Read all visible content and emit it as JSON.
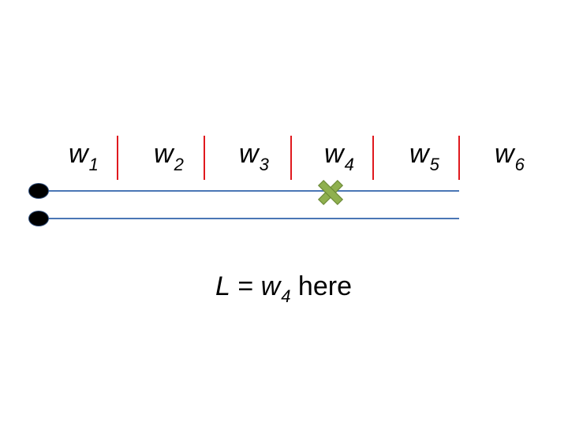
{
  "segments": [
    {
      "name": "w",
      "sub": "1"
    },
    {
      "name": "w",
      "sub": "2"
    },
    {
      "name": "w",
      "sub": "3"
    },
    {
      "name": "w",
      "sub": "4"
    },
    {
      "name": "w",
      "sub": "5"
    },
    {
      "name": "w",
      "sub": "6"
    }
  ],
  "caption": {
    "var": "L",
    "eq": " = ",
    "w": "w",
    "sub": "4",
    "rest": " here"
  },
  "colors": {
    "divider": "#e0191e",
    "wire": "#4a76b5",
    "terminal": "#000000",
    "fault_marker": "#8fb04f"
  },
  "fault_marker_icon": "cross-mark"
}
